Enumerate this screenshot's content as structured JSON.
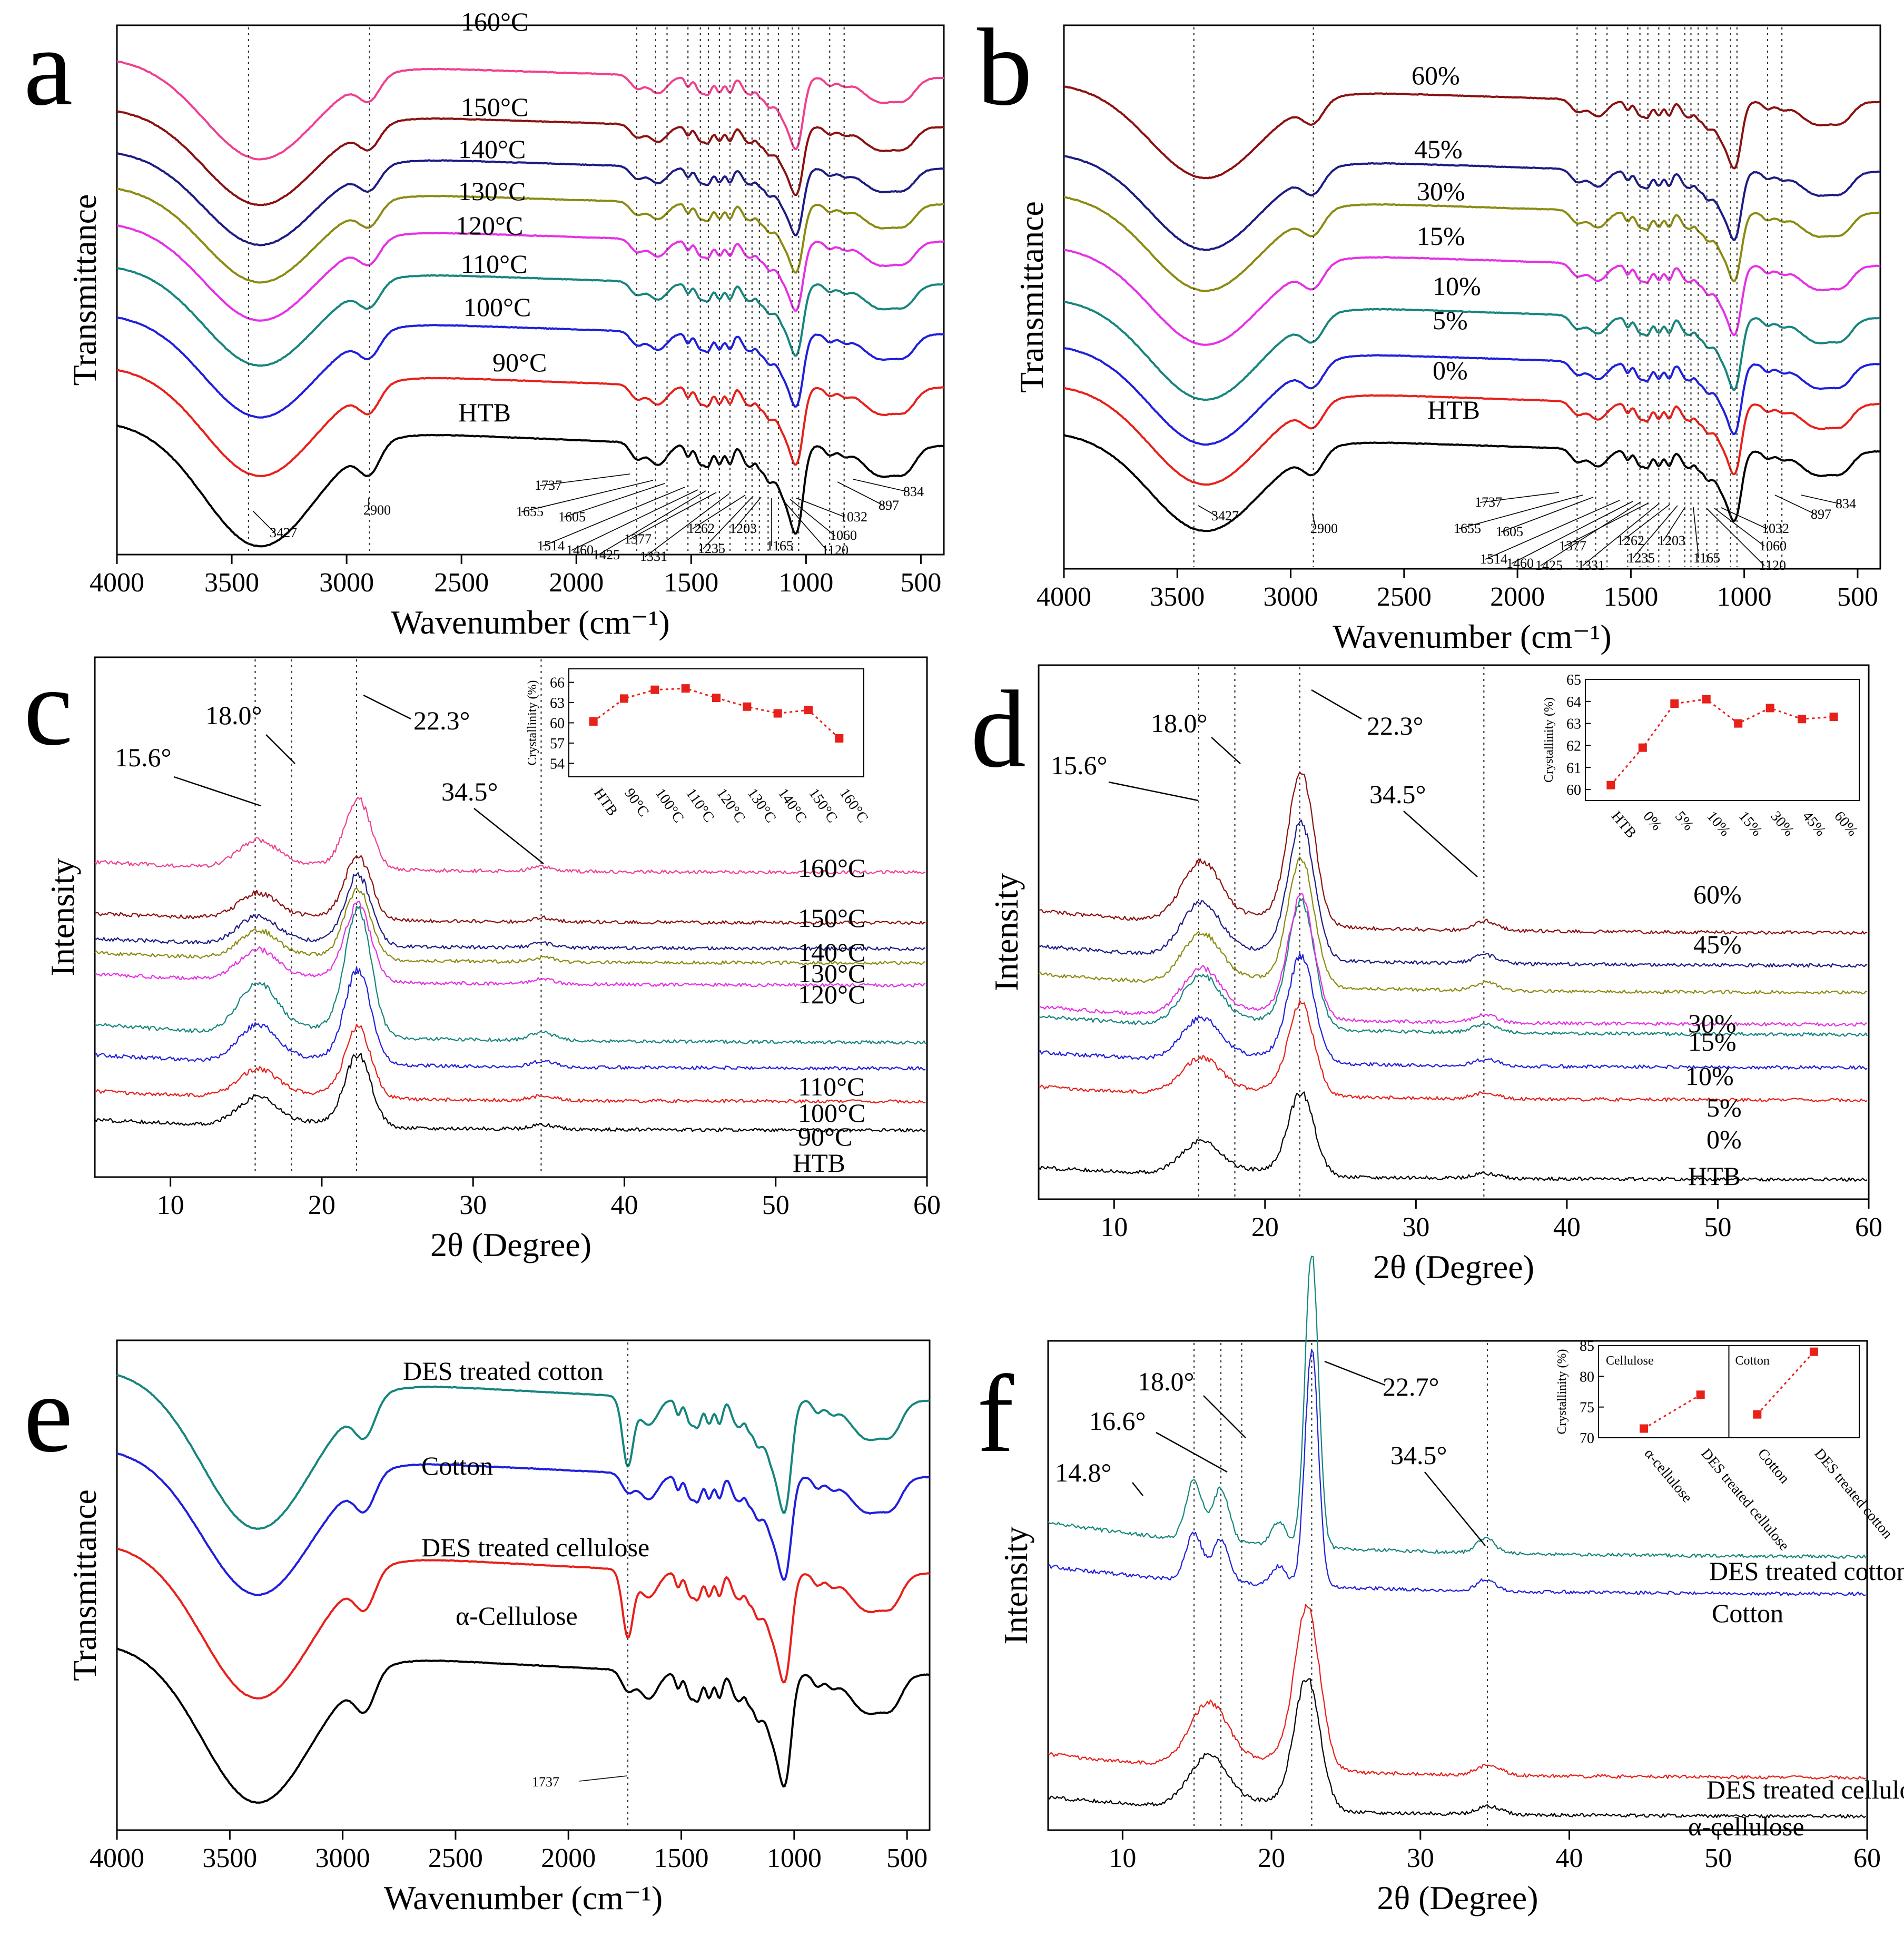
{
  "chart_data": [
    {
      "panel": "a",
      "type": "line",
      "xlabel": "Wavenumber (cm⁻¹)",
      "ylabel": "Transmittance",
      "xlim": [
        4000,
        400
      ],
      "xticks": [
        "4000",
        "3500",
        "3000",
        "2500",
        "2000",
        "1500",
        "1000",
        "500"
      ],
      "series": [
        {
          "name": "HTB",
          "color": "#000000"
        },
        {
          "name": "90°C",
          "color": "#e8201a"
        },
        {
          "name": "100°C",
          "color": "#1f1fdc"
        },
        {
          "name": "110°C",
          "color": "#16857d"
        },
        {
          "name": "120°C",
          "color": "#e530e6"
        },
        {
          "name": "130°C",
          "color": "#8b8b12"
        },
        {
          "name": "140°C",
          "color": "#1c1c84"
        },
        {
          "name": "150°C",
          "color": "#8c1010"
        },
        {
          "name": "160°C",
          "color": "#f0408e"
        }
      ],
      "peak_labels": [
        "3427",
        "2900",
        "1737",
        "1655",
        "1605",
        "1514",
        "1460",
        "1425",
        "1377",
        "1331",
        "1262",
        "1235",
        "1203",
        "1165",
        "1120",
        "1060",
        "1032",
        "897",
        "834"
      ]
    },
    {
      "panel": "b",
      "type": "line",
      "xlabel": "Wavenumber (cm⁻¹)",
      "ylabel": "Transmittance",
      "xlim": [
        4000,
        400
      ],
      "xticks": [
        "4000",
        "3500",
        "3000",
        "2500",
        "2000",
        "1500",
        "1000",
        "500"
      ],
      "series": [
        {
          "name": "HTB",
          "color": "#000000"
        },
        {
          "name": "0%",
          "color": "#e8201a"
        },
        {
          "name": "5%",
          "color": "#1f1fdc"
        },
        {
          "name": "10%",
          "color": "#16857d"
        },
        {
          "name": "15%",
          "color": "#e530e6"
        },
        {
          "name": "30%",
          "color": "#8b8b12"
        },
        {
          "name": "45%",
          "color": "#1c1c84"
        },
        {
          "name": "60%",
          "color": "#8c1010"
        }
      ],
      "peak_labels": [
        "3427",
        "2900",
        "1737",
        "1655",
        "1605",
        "1514",
        "1460",
        "1425",
        "1377",
        "1331",
        "1262",
        "1235",
        "1203",
        "1165",
        "1120",
        "1060",
        "1032",
        "897",
        "834"
      ]
    },
    {
      "panel": "c",
      "type": "line",
      "xlabel": "2θ (Degree)",
      "ylabel": "Intensity",
      "xlim": [
        5,
        60
      ],
      "xticks": [
        "10",
        "20",
        "30",
        "40",
        "50",
        "60"
      ],
      "series": [
        {
          "name": "HTB",
          "color": "#000000"
        },
        {
          "name": "90°C",
          "color": "#e8201a"
        },
        {
          "name": "100°C",
          "color": "#1f1fdc"
        },
        {
          "name": "110°C",
          "color": "#16857d"
        },
        {
          "name": "120°C",
          "color": "#e530e6"
        },
        {
          "name": "130°C",
          "color": "#8b8b12"
        },
        {
          "name": "140°C",
          "color": "#1c1c84"
        },
        {
          "name": "150°C",
          "color": "#8c1010"
        },
        {
          "name": "160°C",
          "color": "#f0408e"
        }
      ],
      "peak_labels": [
        "15.6°",
        "18.0°",
        "22.3°",
        "34.5°"
      ],
      "inset": {
        "type": "scatter",
        "ylabel": "Crystallinity (%)",
        "ylim": [
          52,
          68
        ],
        "yticks": [
          "54",
          "57",
          "60",
          "63",
          "66"
        ],
        "categories": [
          "HTB",
          "90°C",
          "100°C",
          "110°C",
          "120°C",
          "130°C",
          "140°C",
          "150°C",
          "160°C"
        ],
        "values": [
          60.2,
          63.6,
          64.9,
          65.1,
          63.7,
          62.4,
          61.4,
          61.9,
          57.7
        ]
      }
    },
    {
      "panel": "d",
      "type": "line",
      "xlabel": "2θ (Degree)",
      "ylabel": "Intensity",
      "xlim": [
        5,
        60
      ],
      "xticks": [
        "10",
        "20",
        "30",
        "40",
        "50",
        "60"
      ],
      "series": [
        {
          "name": "HTB",
          "color": "#000000"
        },
        {
          "name": "0%",
          "color": "#e8201a"
        },
        {
          "name": "5%",
          "color": "#1f1fdc"
        },
        {
          "name": "10%",
          "color": "#16857d"
        },
        {
          "name": "15%",
          "color": "#e530e6"
        },
        {
          "name": "30%",
          "color": "#8b8b12"
        },
        {
          "name": "45%",
          "color": "#1c1c84"
        },
        {
          "name": "60%",
          "color": "#8c1010"
        }
      ],
      "peak_labels": [
        "15.6°",
        "18.0°",
        "22.3°",
        "34.5°"
      ],
      "inset": {
        "type": "scatter",
        "ylabel": "Crystallinity (%)",
        "ylim": [
          59.5,
          65
        ],
        "yticks": [
          "60",
          "61",
          "62",
          "63",
          "64",
          "65"
        ],
        "categories": [
          "HTB",
          "0%",
          "5%",
          "10%",
          "15%",
          "30%",
          "45%",
          "60%"
        ],
        "values": [
          60.2,
          61.9,
          63.9,
          64.1,
          63.0,
          63.7,
          63.2,
          63.3
        ]
      }
    },
    {
      "panel": "e",
      "type": "line",
      "xlabel": "Wavenumber (cm⁻¹)",
      "ylabel": "Transmittance",
      "xlim": [
        4000,
        400
      ],
      "xticks": [
        "4000",
        "3500",
        "3000",
        "2500",
        "2000",
        "1500",
        "1000",
        "500"
      ],
      "series": [
        {
          "name": "α-Cellulose",
          "color": "#000000"
        },
        {
          "name": "DES treated cellulose",
          "color": "#e8201a"
        },
        {
          "name": "Cotton",
          "color": "#1f1fdc"
        },
        {
          "name": "DES treated cotton",
          "color": "#16857d"
        }
      ],
      "peak_labels": [
        "1737"
      ]
    },
    {
      "panel": "f",
      "type": "line",
      "xlabel": "2θ (Degree)",
      "ylabel": "Intensity",
      "xlim": [
        5,
        60
      ],
      "xticks": [
        "10",
        "20",
        "30",
        "40",
        "50",
        "60"
      ],
      "series": [
        {
          "name": "α-cellulose",
          "color": "#000000"
        },
        {
          "name": "DES treated cellulose",
          "color": "#e8201a"
        },
        {
          "name": "Cotton",
          "color": "#1f1fdc"
        },
        {
          "name": "DES treated cotton",
          "color": "#16857d"
        }
      ],
      "peak_labels": [
        "14.8°",
        "16.6°",
        "18.0°",
        "22.7°",
        "34.5°"
      ],
      "inset": {
        "type": "scatter",
        "ylabel": "Crystallinity (%)",
        "ylim": [
          70,
          85
        ],
        "yticks": [
          "70",
          "75",
          "80",
          "85"
        ],
        "group_labels": [
          "Cellulose",
          "Cotton"
        ],
        "categories": [
          "α-cellulose",
          "DES treated cellulose",
          "Cotton",
          "DES treated cotton"
        ],
        "values": [
          71.5,
          77.0,
          73.8,
          84.0
        ]
      }
    }
  ]
}
